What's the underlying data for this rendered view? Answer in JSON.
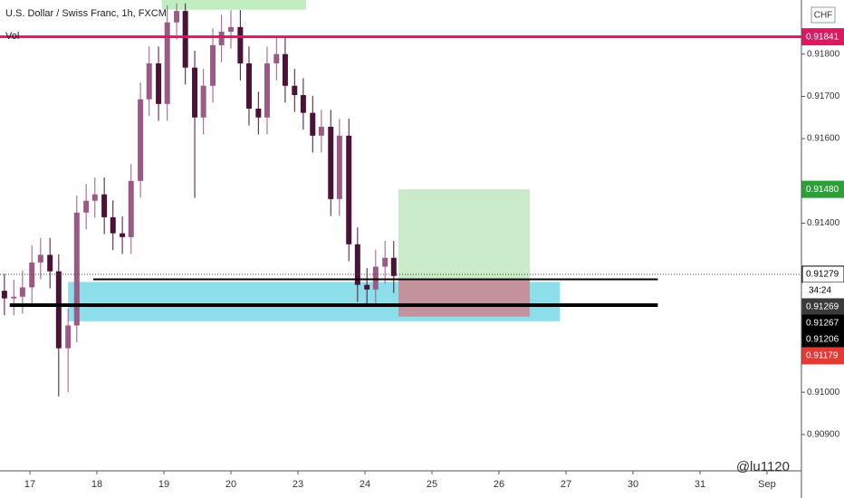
{
  "chart_data": {
    "type": "candlestick",
    "title": "U.S. Dollar / Swiss Franc, 1h, FXCM",
    "indicator": "Vol",
    "currency": "CHF",
    "watermark": "@lu1120",
    "countdown": "34:24",
    "up_color": "#9b5a86",
    "down_color": "#4a1236",
    "x": [
      -0.38,
      -0.24,
      -0.11,
      0.03,
      0.16,
      0.3,
      0.43,
      0.57,
      0.7,
      0.84,
      0.97,
      1.11,
      1.24,
      1.38,
      1.51,
      1.65,
      1.78,
      1.92,
      2.05,
      2.19,
      2.32,
      2.46,
      2.59,
      2.73,
      2.86,
      3.0,
      3.14,
      3.27,
      3.41,
      3.54,
      3.68,
      3.81,
      3.95,
      4.08,
      4.22,
      4.35,
      4.49,
      4.62,
      4.76,
      4.89,
      5.03,
      5.16,
      5.3,
      5.43
    ],
    "open": [
      0.9124,
      0.91222,
      0.91226,
      0.91248,
      0.91307,
      0.91325,
      0.91286,
      0.91104,
      0.91158,
      0.91425,
      0.91453,
      0.91468,
      0.91414,
      0.91376,
      0.91367,
      0.915,
      0.91693,
      0.91778,
      0.91682,
      0.91875,
      0.91902,
      0.91768,
      0.9165,
      0.91725,
      0.91821,
      0.91853,
      0.91864,
      0.91778,
      0.91671,
      0.9165,
      0.91778,
      0.918,
      0.91725,
      0.91703,
      0.91661,
      0.91607,
      0.91628,
      0.91457,
      0.91607,
      0.9135,
      0.91254,
      0.91243,
      0.91297,
      0.91318
    ],
    "high": [
      0.9128,
      0.91266,
      0.91288,
      0.91347,
      0.91365,
      0.91365,
      0.91326,
      0.91198,
      0.91465,
      0.91493,
      0.91508,
      0.91508,
      0.91454,
      0.91416,
      0.9154,
      0.91733,
      0.91818,
      0.91818,
      0.91915,
      0.9192,
      0.9192,
      0.91808,
      0.91765,
      0.91861,
      0.91893,
      0.91904,
      0.91904,
      0.91818,
      0.91711,
      0.91818,
      0.9184,
      0.9184,
      0.91765,
      0.91743,
      0.91701,
      0.91668,
      0.91668,
      0.91647,
      0.91647,
      0.9139,
      0.91294,
      0.91337,
      0.91358,
      0.91358
    ],
    "low": [
      0.91182,
      0.91182,
      0.91186,
      0.91208,
      0.91267,
      0.91246,
      0.9099,
      0.91,
      0.91118,
      0.91385,
      0.91413,
      0.91374,
      0.91336,
      0.91327,
      0.91327,
      0.9146,
      0.91653,
      0.91642,
      0.91642,
      0.91835,
      0.91728,
      0.9146,
      0.9161,
      0.91685,
      0.91781,
      0.91813,
      0.91738,
      0.91631,
      0.9161,
      0.9161,
      0.91738,
      0.91685,
      0.91663,
      0.91621,
      0.91567,
      0.91567,
      0.91417,
      0.91417,
      0.9131,
      0.91214,
      0.91203,
      0.91203,
      0.91257,
      0.91235
    ],
    "close": [
      0.91222,
      0.91226,
      0.91248,
      0.91307,
      0.91325,
      0.91286,
      0.91104,
      0.91158,
      0.91425,
      0.91453,
      0.91468,
      0.91414,
      0.91376,
      0.91367,
      0.915,
      0.91693,
      0.91778,
      0.91682,
      0.91875,
      0.91902,
      0.91768,
      0.9165,
      0.91725,
      0.91821,
      0.91853,
      0.91864,
      0.91778,
      0.91671,
      0.9165,
      0.91778,
      0.918,
      0.91725,
      0.91703,
      0.91661,
      0.91607,
      0.91628,
      0.91457,
      0.91607,
      0.9135,
      0.91254,
      0.91243,
      0.91297,
      0.91318,
      0.91275
    ],
    "xlim": [
      -0.446,
      11.514
    ],
    "xticks": [
      {
        "value": 0,
        "label": "17"
      },
      {
        "value": 1,
        "label": "18"
      },
      {
        "value": 2,
        "label": "19"
      },
      {
        "value": 3,
        "label": "20"
      },
      {
        "value": 4,
        "label": "23"
      },
      {
        "value": 5,
        "label": "24"
      },
      {
        "value": 6,
        "label": "25"
      },
      {
        "value": 7,
        "label": "26"
      },
      {
        "value": 8,
        "label": "27"
      },
      {
        "value": 9,
        "label": "30"
      },
      {
        "value": 10,
        "label": "31"
      },
      {
        "value": 11,
        "label": "Sep"
      }
    ],
    "ylim": [
      0.90814,
      0.91928
    ],
    "yticks": [
      {
        "value": 0.918,
        "label": "0.91800"
      },
      {
        "value": 0.917,
        "label": "0.91700"
      },
      {
        "value": 0.916,
        "label": "0.91600"
      },
      {
        "value": 0.914,
        "label": "0.91400"
      },
      {
        "value": 0.91,
        "label": "0.91000"
      },
      {
        "value": 0.909,
        "label": "0.90900"
      }
    ],
    "zones": [
      {
        "x": [
          0.57,
          7.91
        ],
        "y": [
          0.91168,
          0.91261
        ],
        "color": "#7fdbe8"
      },
      {
        "x": [
          5.5,
          7.46
        ],
        "y": [
          0.91267,
          0.9148
        ],
        "color": "#c3e9c3"
      },
      {
        "x": [
          5.5,
          7.46
        ],
        "y": [
          0.91179,
          0.91267
        ],
        "color": "#c98a95"
      },
      {
        "x": [
          1.97,
          4.12
        ],
        "y": [
          0.91905,
          0.91928
        ],
        "color": "#b9ecb9"
      }
    ],
    "hlines": [
      {
        "value": 0.91841,
        "color": "#d81b60",
        "width": 3
      },
      {
        "value": 0.91267,
        "color": "#000000",
        "width": 2
      },
      {
        "value": 0.91206,
        "color": "#000000",
        "width": 4
      }
    ],
    "price_labels": [
      {
        "value": 0.91841,
        "color": "#d81b60"
      },
      {
        "value": 0.9148,
        "label": "0.91480",
        "color": "#2e9e3a"
      },
      {
        "value": 0.91279,
        "color": "#ffffff"
      },
      {
        "value": 0.91269,
        "color": "#3a3a3a"
      },
      {
        "value": 0.91267,
        "color": "#000000"
      },
      {
        "value": 0.91206,
        "color": "#000000"
      },
      {
        "value": 0.91179,
        "color": "#e53935"
      }
    ]
  }
}
